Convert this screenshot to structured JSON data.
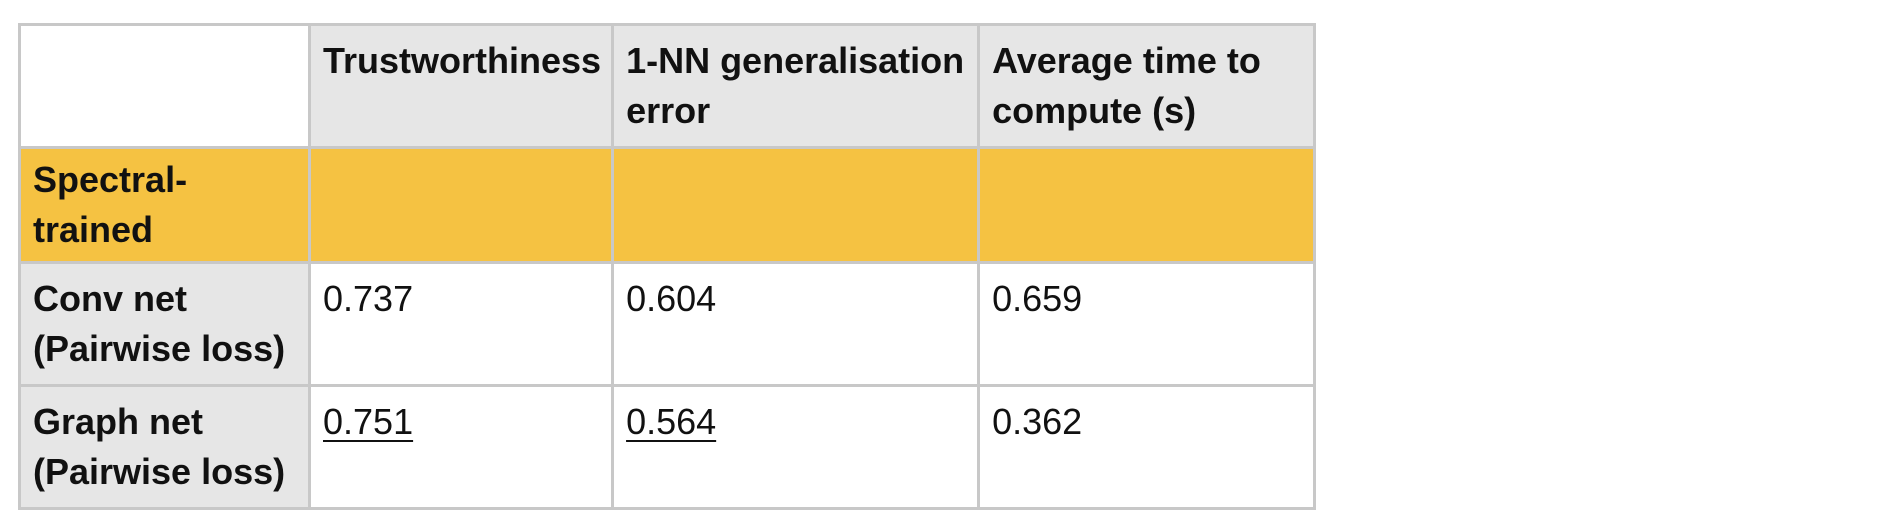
{
  "table": {
    "headers": [
      "",
      "Trustworthiness",
      "1-NN generalisation error",
      "Average time to compute (s)"
    ],
    "section_label": "Spectral-trained",
    "rows": [
      {
        "label": "Conv net (Pairwise loss)",
        "values": [
          "0.737",
          "0.604",
          "0.659"
        ],
        "underlined": [
          false,
          false,
          false
        ]
      },
      {
        "label": "Graph net (Pairwise loss)",
        "values": [
          "0.751",
          "0.564",
          "0.362"
        ],
        "underlined": [
          true,
          true,
          false
        ]
      }
    ]
  },
  "colors": {
    "header_bg": "#e6e6e6",
    "section_bg": "#f5c242",
    "border": "#c8c8c8",
    "cell_bg": "#ffffff"
  }
}
